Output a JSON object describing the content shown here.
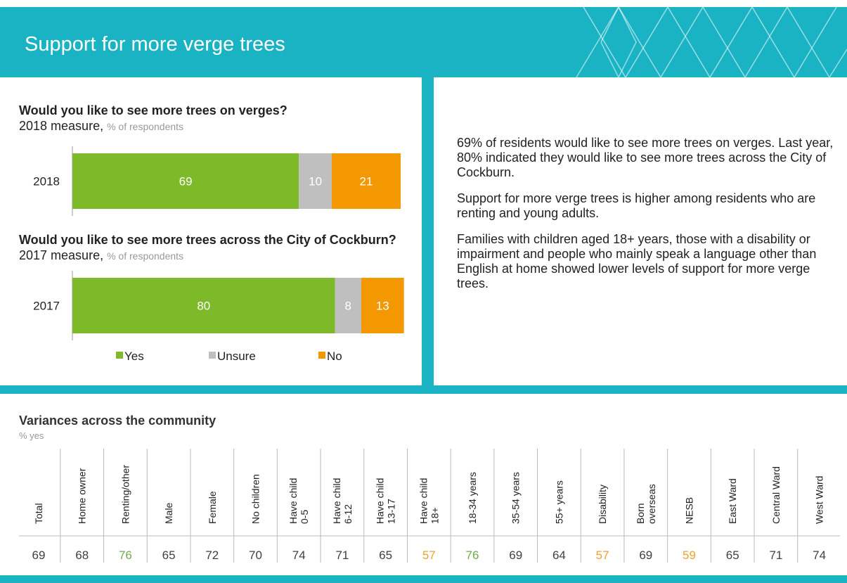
{
  "header": {
    "title": "Support for more verge trees"
  },
  "chart_data": {
    "type": "bar",
    "orientation": "horizontal",
    "stacked": true,
    "panels": [
      {
        "question": "Would you like to see more trees on verges?",
        "measure": "2018 measure,",
        "unit": "% of respondents"
      },
      {
        "question": "Would you like to see more trees across the City of Cockburn?",
        "measure": "2017 measure,",
        "unit": "% of respondents"
      }
    ],
    "categories": [
      "2018",
      "2017"
    ],
    "series": [
      {
        "name": "Yes",
        "color": "#7db928",
        "values": [
          69,
          80
        ]
      },
      {
        "name": "Unsure",
        "color": "#bfbfbf",
        "values": [
          10,
          8
        ]
      },
      {
        "name": "No",
        "color": "#f39800",
        "values": [
          21,
          13
        ]
      }
    ],
    "xlim": [
      0,
      100
    ]
  },
  "commentary": [
    "69% of residents would like to see more trees on verges.  Last year, 80% indicated they would like to see more trees across the City of Cockburn.",
    "Support for more verge trees is higher among residents who are renting and young adults.",
    "Families with children aged 18+ years, those with a disability or impairment and people who mainly speak a language other than English at home showed lower levels of support for more verge trees."
  ],
  "table": {
    "title": "Variances across the community",
    "unit": "% yes",
    "columns": [
      "Total",
      "Home owner",
      "Renting/other",
      "Male",
      "Female",
      "No children",
      "Have child\n0-5",
      "Have child\n6-12",
      "Have child\n13-17",
      "Have child\n18+",
      "18-34 years",
      "35-54 years",
      "55+ years",
      "Disability",
      "Born\noverseas",
      "NESB",
      "East Ward",
      "Central Ward",
      "West Ward"
    ],
    "values": [
      69,
      68,
      76,
      65,
      72,
      70,
      74,
      71,
      65,
      57,
      76,
      69,
      64,
      57,
      69,
      59,
      65,
      71,
      74
    ],
    "value_colors": [
      "#404040",
      "#404040",
      "#70ad47",
      "#404040",
      "#404040",
      "#404040",
      "#404040",
      "#404040",
      "#404040",
      "#f0a030",
      "#70ad47",
      "#404040",
      "#404040",
      "#f0a030",
      "#404040",
      "#f0a030",
      "#404040",
      "#404040",
      "#404040"
    ]
  }
}
